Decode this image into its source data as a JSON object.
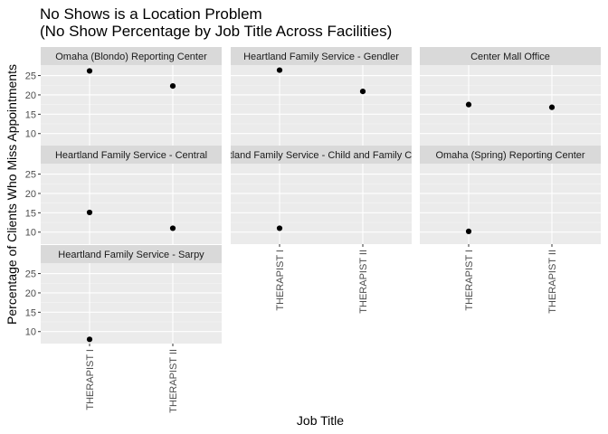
{
  "chart_data": {
    "type": "scatter",
    "title_lines": [
      "No Shows is a Location Problem",
      "(No Show Percentage by Job Title Across Facilities)"
    ],
    "xlabel": "Job Title",
    "ylabel": "Percentage of Clients Who Miss Appointments",
    "categories": [
      "THERAPIST I",
      "THERAPIST II"
    ],
    "yticks": [
      10,
      15,
      20,
      25
    ],
    "ylim": [
      6.9,
      27.7
    ],
    "grid": true,
    "point_color": "#000000",
    "panel_background": "#ebebeb",
    "strip_background": "#d9d9d9",
    "facets": [
      {
        "name": "Omaha (Blondo) Reporting Center",
        "points": [
          {
            "x": "THERAPIST I",
            "y": 26.2
          },
          {
            "x": "THERAPIST II",
            "y": 22.3
          }
        ]
      },
      {
        "name": "Heartland Family Service - Gendler",
        "points": [
          {
            "x": "THERAPIST I",
            "y": 26.4
          },
          {
            "x": "THERAPIST II",
            "y": 20.9
          }
        ]
      },
      {
        "name": "Center Mall Office",
        "points": [
          {
            "x": "THERAPIST I",
            "y": 17.5
          },
          {
            "x": "THERAPIST II",
            "y": 16.8
          }
        ]
      },
      {
        "name": "Heartland Family Service - Central",
        "points": [
          {
            "x": "THERAPIST I",
            "y": 15.1
          },
          {
            "x": "THERAPIST II",
            "y": 11.0
          }
        ]
      },
      {
        "name": "Heartland Family Service - Child and Family Center",
        "points": [
          {
            "x": "THERAPIST I",
            "y": 11.0
          }
        ]
      },
      {
        "name": "Omaha (Spring) Reporting Center",
        "points": [
          {
            "x": "THERAPIST I",
            "y": 10.2
          }
        ]
      },
      {
        "name": "Heartland Family Service - Sarpy",
        "points": [
          {
            "x": "THERAPIST I",
            "y": 8.0
          }
        ]
      }
    ]
  }
}
